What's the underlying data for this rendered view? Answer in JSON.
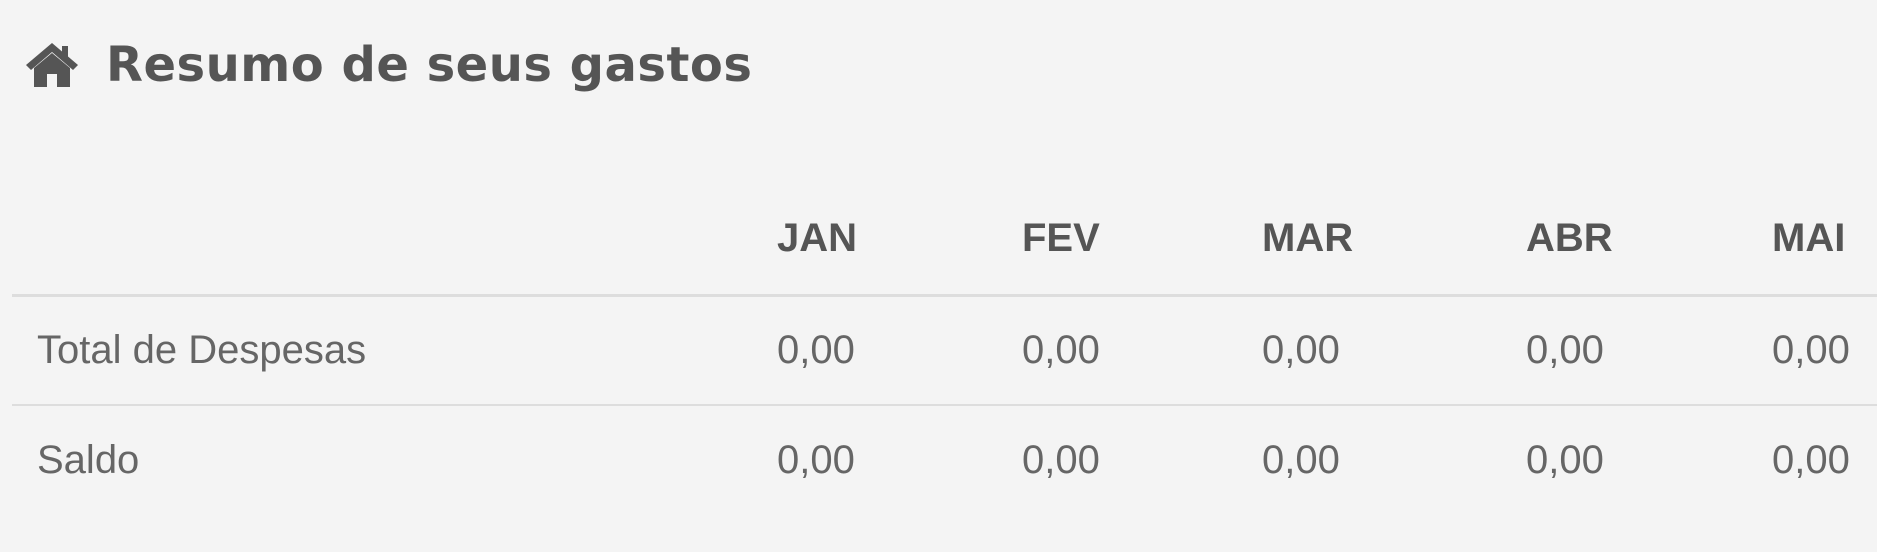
{
  "header": {
    "icon": "home-icon",
    "title": "Resumo de seus gastos"
  },
  "table": {
    "columns": [
      "",
      "JAN",
      "FEV",
      "MAR",
      "ABR",
      "MAI"
    ],
    "rows": [
      {
        "label": "Total de Despesas",
        "values": [
          "0,00",
          "0,00",
          "0,00",
          "0,00",
          "0,00"
        ]
      },
      {
        "label": "Saldo",
        "values": [
          "0,00",
          "0,00",
          "0,00",
          "0,00",
          "0,00"
        ]
      }
    ]
  },
  "colors": {
    "background": "#f4f4f4",
    "text": "#555555",
    "muted_text": "#666666",
    "divider": "#dddddd"
  }
}
